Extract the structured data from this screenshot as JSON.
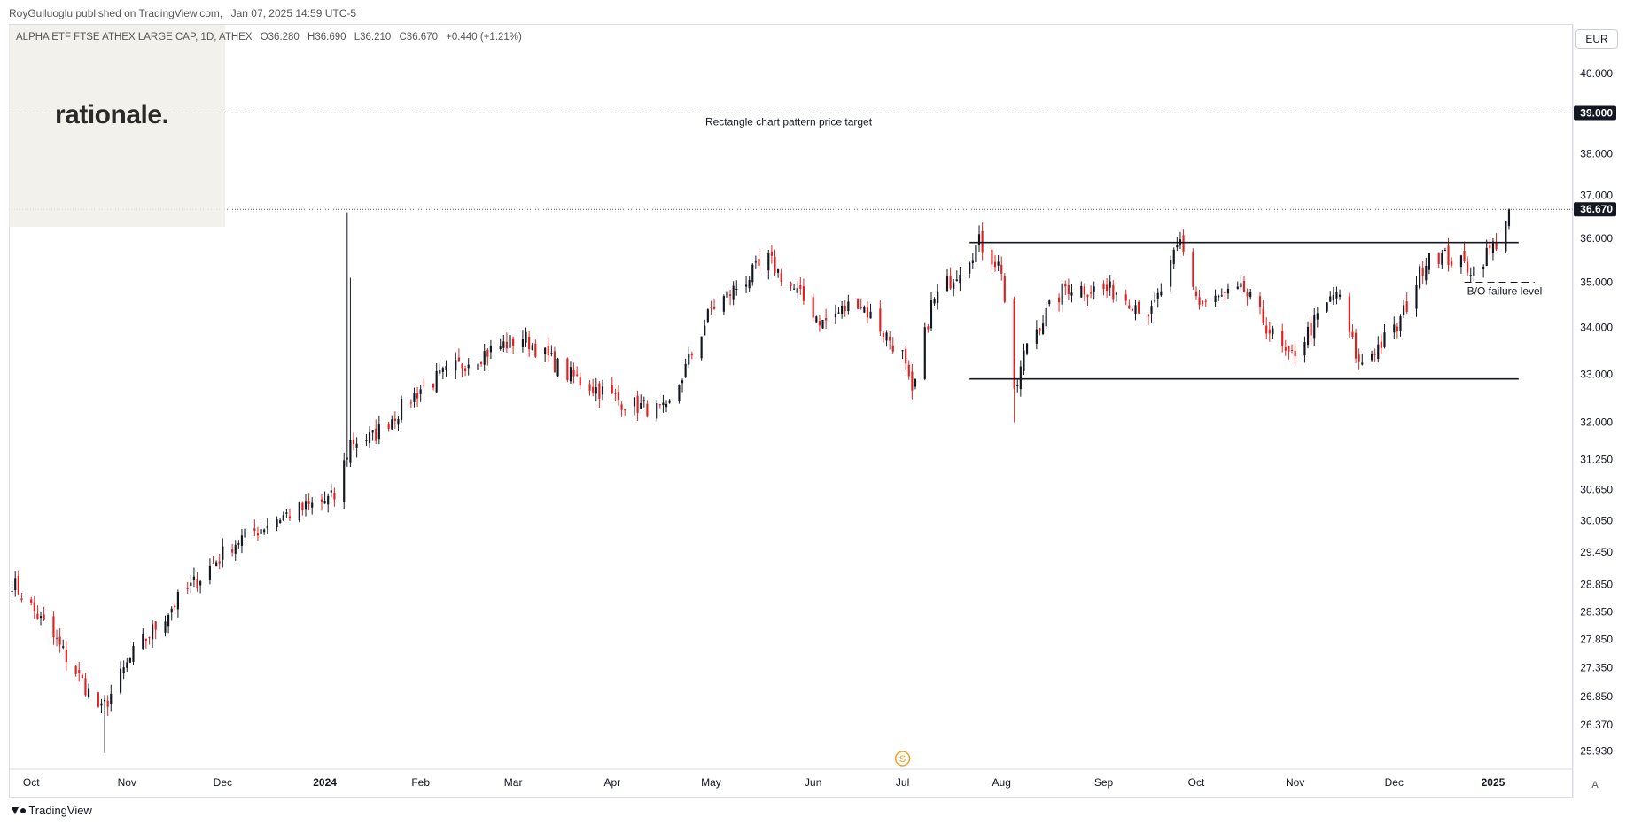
{
  "header": {
    "publisher": "RoyGulluoglu published on TradingView.com,",
    "timestamp": "Jan 07, 2025 14:59 UTC-5"
  },
  "legend": {
    "symbol": "ALPHA ETF FTSE ATHEX LARGE CAP, 1D, ATHEX",
    "open": "O36.280",
    "high": "H36.690",
    "low": "L36.210",
    "close": "C36.670",
    "change": "+0.440 (+1.21%)"
  },
  "logo": {
    "text": "rationale."
  },
  "currency_button": "EUR",
  "auto_button": "A",
  "footer": {
    "brand": "TradingView",
    "icon": "tradingview-logo-icon"
  },
  "colors": {
    "up": "#131722",
    "down": "#e0211f",
    "grid": "#f0f3fa",
    "axis": "#131722"
  },
  "chart_data": {
    "type": "candlestick",
    "y_axis": {
      "scale": "log",
      "range": [
        25.75,
        41.1
      ],
      "ticks": [
        "40.000",
        "39.000",
        "38.000",
        "37.000",
        "36.000",
        "35.000",
        "34.000",
        "33.000",
        "32.000",
        "31.250",
        "30.650",
        "30.050",
        "29.450",
        "28.850",
        "28.350",
        "27.850",
        "27.350",
        "26.850",
        "26.370",
        "25.930"
      ],
      "tick_values": [
        40.0,
        39.0,
        38.0,
        37.0,
        36.0,
        35.0,
        34.0,
        33.0,
        32.0,
        31.25,
        30.65,
        30.05,
        29.45,
        28.85,
        28.35,
        27.85,
        27.35,
        26.85,
        26.37,
        25.93
      ],
      "badges": [
        {
          "value": 39.0,
          "label": "39.000",
          "style": "dark"
        },
        {
          "value": 36.67,
          "label": "36.670",
          "style": "dark"
        }
      ]
    },
    "x_axis": {
      "range": [
        "2023-09-25",
        "2025-01-27"
      ],
      "labels": [
        {
          "date": "2023-10-02",
          "text": "Oct",
          "bold": false
        },
        {
          "date": "2023-11-01",
          "text": "Nov",
          "bold": false
        },
        {
          "date": "2023-12-01",
          "text": "Dec",
          "bold": false
        },
        {
          "date": "2024-01-02",
          "text": "2024",
          "bold": true
        },
        {
          "date": "2024-02-01",
          "text": "Feb",
          "bold": false
        },
        {
          "date": "2024-03-01",
          "text": "Mar",
          "bold": false
        },
        {
          "date": "2024-04-01",
          "text": "Apr",
          "bold": false
        },
        {
          "date": "2024-05-02",
          "text": "May",
          "bold": false
        },
        {
          "date": "2024-06-03",
          "text": "Jun",
          "bold": false
        },
        {
          "date": "2024-07-01",
          "text": "Jul",
          "bold": false
        },
        {
          "date": "2024-08-01",
          "text": "Aug",
          "bold": false
        },
        {
          "date": "2024-09-02",
          "text": "Sep",
          "bold": false
        },
        {
          "date": "2024-10-01",
          "text": "Oct",
          "bold": false
        },
        {
          "date": "2024-11-01",
          "text": "Nov",
          "bold": false
        },
        {
          "date": "2024-12-02",
          "text": "Dec",
          "bold": false
        },
        {
          "date": "2025-01-02",
          "text": "2025",
          "bold": true
        }
      ]
    },
    "key_points": [
      {
        "date": "2023-09-26",
        "close": 28.9
      },
      {
        "date": "2023-10-10",
        "close": 27.8
      },
      {
        "date": "2023-10-24",
        "close": 26.6
      },
      {
        "date": "2023-11-03",
        "close": 27.6
      },
      {
        "date": "2023-11-16",
        "close": 28.5
      },
      {
        "date": "2023-12-04",
        "close": 29.6
      },
      {
        "date": "2023-12-18",
        "close": 30.1
      },
      {
        "date": "2024-01-05",
        "close": 30.5
      },
      {
        "date": "2024-01-10",
        "close": 31.6
      },
      {
        "date": "2024-01-17",
        "close": 31.7
      },
      {
        "date": "2024-02-01",
        "close": 32.7
      },
      {
        "date": "2024-02-16",
        "close": 33.3
      },
      {
        "date": "2024-03-04",
        "close": 33.8
      },
      {
        "date": "2024-03-18",
        "close": 33.0
      },
      {
        "date": "2024-04-05",
        "close": 32.4
      },
      {
        "date": "2024-04-18",
        "close": 32.2
      },
      {
        "date": "2024-05-02",
        "close": 34.4
      },
      {
        "date": "2024-05-20",
        "close": 35.5
      },
      {
        "date": "2024-06-06",
        "close": 34.1
      },
      {
        "date": "2024-06-17",
        "close": 34.6
      },
      {
        "date": "2024-07-01",
        "close": 33.4
      },
      {
        "date": "2024-07-04",
        "close": 32.5
      },
      {
        "date": "2024-07-10",
        "close": 34.5
      },
      {
        "date": "2024-07-25",
        "close": 35.9
      },
      {
        "date": "2024-08-01",
        "close": 35.3
      },
      {
        "date": "2024-08-05",
        "close": 32.5
      },
      {
        "date": "2024-08-09",
        "close": 33.7
      },
      {
        "date": "2024-08-21",
        "close": 34.9
      },
      {
        "date": "2024-09-06",
        "close": 34.8
      },
      {
        "date": "2024-09-17",
        "close": 34.3
      },
      {
        "date": "2024-09-26",
        "close": 35.9
      },
      {
        "date": "2024-10-02",
        "close": 34.5
      },
      {
        "date": "2024-10-16",
        "close": 34.8
      },
      {
        "date": "2024-10-30",
        "close": 33.3
      },
      {
        "date": "2024-11-14",
        "close": 34.8
      },
      {
        "date": "2024-11-21",
        "close": 33.2
      },
      {
        "date": "2024-12-03",
        "close": 34.0
      },
      {
        "date": "2024-12-13",
        "close": 35.7
      },
      {
        "date": "2024-12-27",
        "close": 35.3
      },
      {
        "date": "2025-01-03",
        "close": 35.9
      },
      {
        "date": "2025-01-07",
        "close": 36.67
      }
    ],
    "spikes": [
      {
        "date": "2023-10-25",
        "low": 25.9,
        "high": 26.5
      },
      {
        "date": "2024-01-09",
        "low": 31.1,
        "high": 36.6
      },
      {
        "date": "2024-01-10",
        "low": 31.4,
        "high": 35.1
      },
      {
        "date": "2024-08-05",
        "low": 32.0,
        "high": 33.0
      }
    ],
    "lines": [
      {
        "value": 39.0,
        "style": "dashed",
        "from": "2023-09-25",
        "to": "2025-01-27",
        "label": "Rectangle chart pattern price target"
      },
      {
        "value": 35.9,
        "style": "solid",
        "from": "2024-07-22",
        "to": "2025-01-10"
      },
      {
        "value": 32.9,
        "style": "solid",
        "from": "2024-07-22",
        "to": "2025-01-10"
      },
      {
        "value": 35.0,
        "style": "dashed",
        "from": "2024-12-24",
        "to": "2025-01-15",
        "label": "B/O failure level"
      },
      {
        "value": 36.67,
        "style": "dotted",
        "from": "2023-09-25",
        "to": "2025-01-27"
      }
    ],
    "event_marker": {
      "date": "2024-07-01",
      "symbol": "S"
    }
  }
}
